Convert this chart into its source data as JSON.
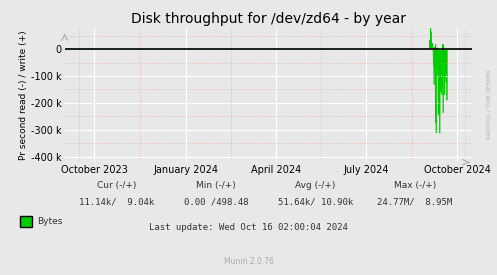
{
  "title": "Disk throughput for /dev/zd64 - by year",
  "ylabel": "Pr second read (-) / write (+)",
  "background_color": "#e8e8e8",
  "plot_bg_color": "#e8e8e8",
  "line_color": "#00cc00",
  "zero_line_color": "#000000",
  "xlim_start": 1693526400,
  "xlim_end": 1729036800,
  "ylim": [
    -420000,
    80000
  ],
  "yticks": [
    0,
    -100000,
    -200000,
    -300000,
    -400000
  ],
  "ytick_labels": [
    "0",
    "-100 k",
    "-200 k",
    "-300 k",
    "-400 k"
  ],
  "xtick_labels": [
    "October 2023",
    "January 2024",
    "April 2024",
    "July 2024",
    "October 2024"
  ],
  "xtick_positions": [
    1696118400,
    1704067200,
    1711929600,
    1719792000,
    1727740800
  ],
  "legend_label": "Bytes",
  "legend_color": "#00cc00",
  "cur_text": "Cur (-/+)",
  "cur_val": "11.14k/  9.04k",
  "min_text": "Min (-/+)",
  "min_val": "0.00 /498.48",
  "avg_text": "Avg (-/+)",
  "avg_val": "51.64k/ 10.90k",
  "max_text": "Max (-/+)",
  "max_val": "24.77M/  8.95M",
  "last_update": "Last update: Wed Oct 16 02:00:04 2024",
  "munin_text": "Munin 2.0.76",
  "watermark": "RRDTOOL / TOBI OETIKER",
  "title_fontsize": 10,
  "axis_fontsize": 7,
  "small_fontsize": 6.5,
  "mono_fontsize": 6.5
}
